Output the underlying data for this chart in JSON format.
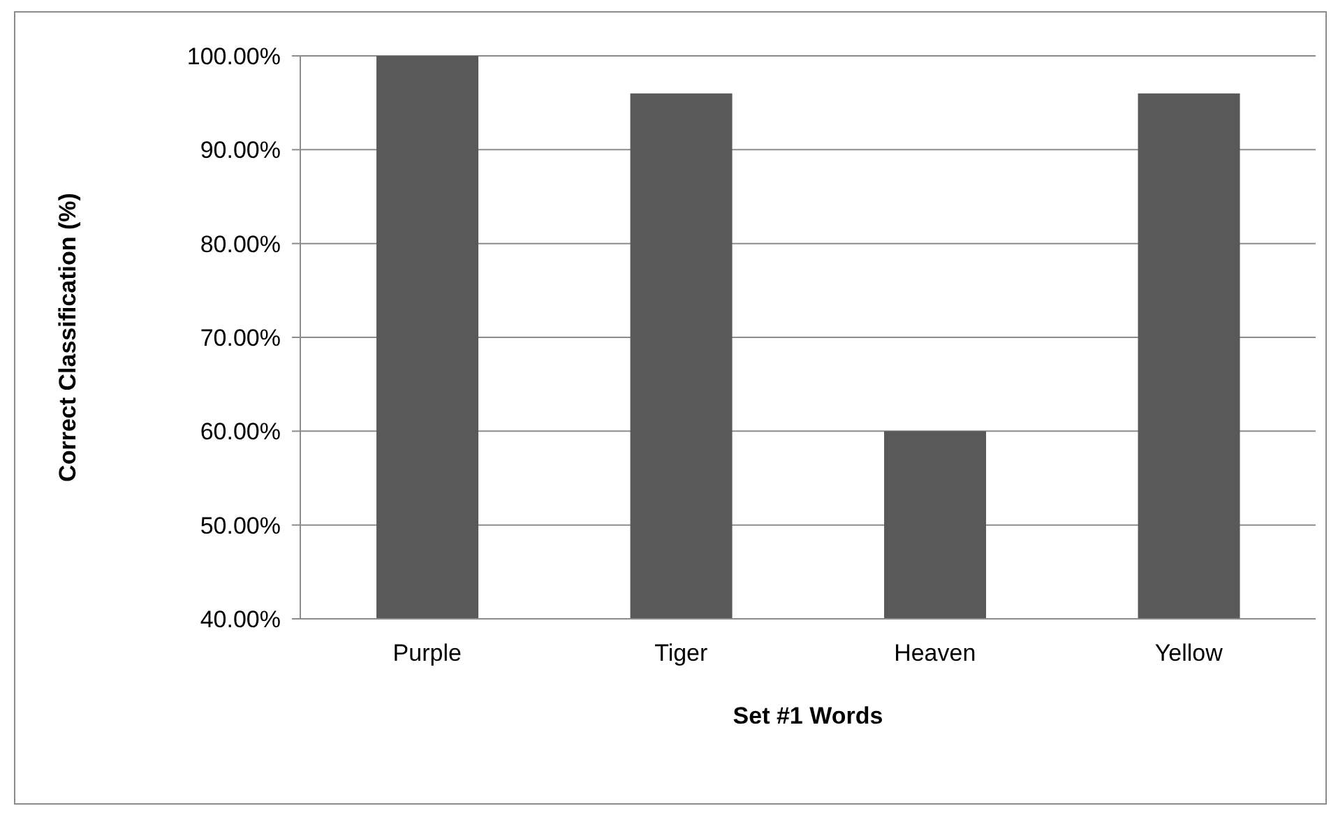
{
  "chart_data": {
    "type": "bar",
    "xlabel": "Set #1 Words",
    "ylabel": "Correct Classification (%)",
    "categories": [
      "Purple",
      "Tiger",
      "Heaven",
      "Yellow"
    ],
    "values": [
      100,
      96,
      60,
      96
    ],
    "color": "#595959",
    "ylim": [
      40,
      100
    ],
    "yticks": [
      {
        "value": 40,
        "label": "40.00%"
      },
      {
        "value": 50,
        "label": "50.00%"
      },
      {
        "value": 60,
        "label": "60.00%"
      },
      {
        "value": 70,
        "label": "70.00%"
      },
      {
        "value": 80,
        "label": "80.00%"
      },
      {
        "value": 90,
        "label": "90.00%"
      },
      {
        "value": 100,
        "label": "100.00%"
      }
    ],
    "grid": "y",
    "legend": false
  }
}
